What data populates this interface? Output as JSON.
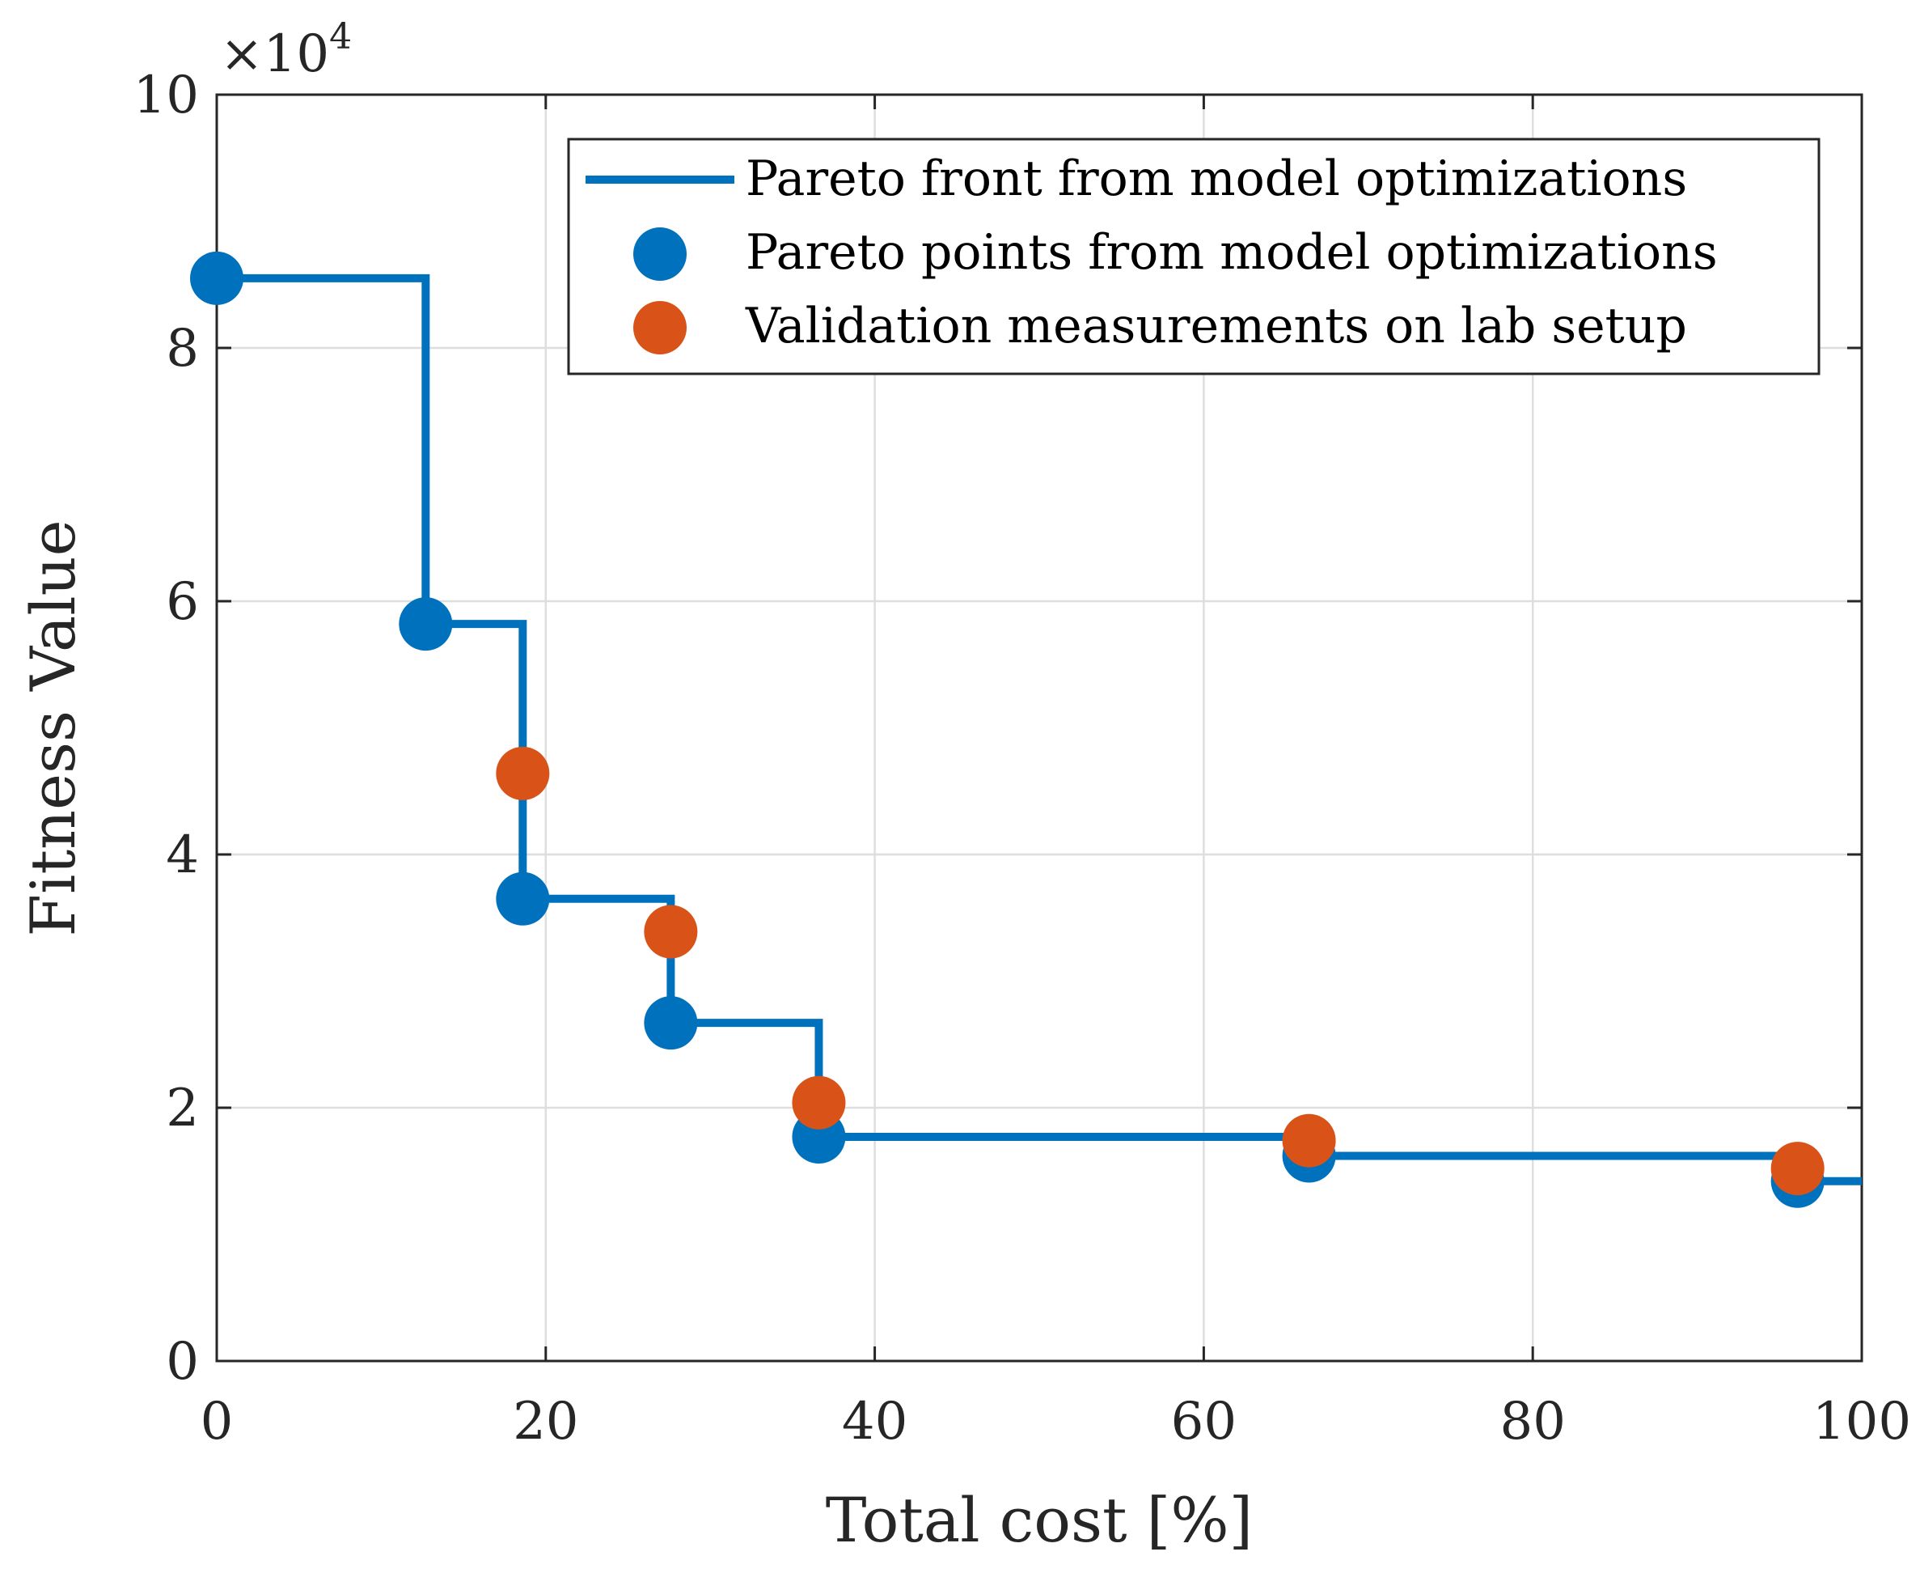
{
  "chart_data": {
    "type": "line+scatter",
    "xlabel": "Total cost [%]",
    "ylabel": "Fitness Value",
    "xlim": [
      0,
      100
    ],
    "ylim": [
      0,
      100000
    ],
    "x_ticks": [
      0,
      20,
      40,
      60,
      80,
      100
    ],
    "y_ticks": [
      0,
      20000,
      40000,
      60000,
      80000,
      100000
    ],
    "x_tick_labels": [
      "0",
      "20",
      "40",
      "60",
      "80",
      "100"
    ],
    "y_tick_labels": [
      "0",
      "2",
      "4",
      "6",
      "8",
      "10"
    ],
    "y_exponent_label": "×10",
    "y_exponent_power": "4",
    "grid": true,
    "legend_position": "top-right",
    "series": [
      {
        "name": "Pareto front from model optimizations",
        "kind": "step-line",
        "color": "#0072BD",
        "x": [
          0,
          12.7,
          18.6,
          27.6,
          36.6,
          66.4,
          96.1,
          100
        ],
        "y": [
          85500,
          58200,
          36500,
          26700,
          17700,
          16200,
          14200,
          14200
        ]
      },
      {
        "name": "Pareto points from model optimizations",
        "kind": "scatter",
        "color": "#0072BD",
        "x": [
          0,
          12.7,
          18.6,
          27.6,
          36.6,
          66.4,
          96.1
        ],
        "y": [
          85500,
          58200,
          36500,
          26700,
          17700,
          16200,
          14200
        ]
      },
      {
        "name": "Validation measurements on lab setup",
        "kind": "scatter",
        "color": "#D95319",
        "x": [
          18.6,
          27.6,
          36.6,
          66.4,
          96.1
        ],
        "y": [
          46400,
          33900,
          20400,
          17400,
          15200
        ]
      }
    ]
  }
}
